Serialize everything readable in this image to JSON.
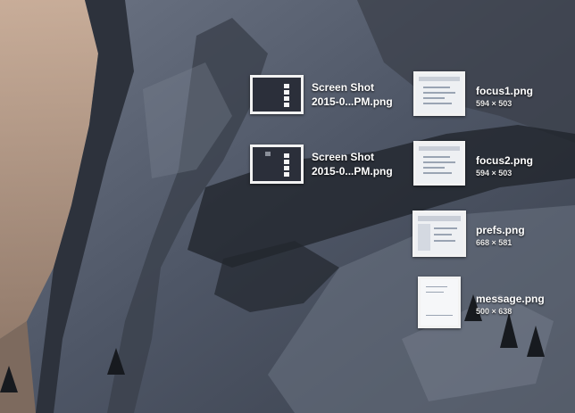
{
  "desktop": {
    "files": [
      {
        "id": "screenshot-1",
        "name_line1": "Screen Shot",
        "name_line2": "2015-0...PM.png",
        "icon": "screenshot-thumbnail-icon"
      },
      {
        "id": "screenshot-2",
        "name_line1": "Screen Shot",
        "name_line2": "2015-0...PM.png",
        "icon": "screenshot-thumbnail-icon"
      },
      {
        "id": "focus1",
        "name": "focus1.png",
        "dims": "594 × 503",
        "icon": "image-thumbnail-icon"
      },
      {
        "id": "focus2",
        "name": "focus2.png",
        "dims": "594 × 503",
        "icon": "image-thumbnail-icon"
      },
      {
        "id": "prefs",
        "name": "prefs.png",
        "dims": "668 × 581",
        "icon": "image-thumbnail-icon"
      },
      {
        "id": "message",
        "name": "message.png",
        "dims": "500 × 638",
        "icon": "image-thumbnail-icon"
      }
    ]
  },
  "colors": {
    "label_text": "#ffffff",
    "thumb_border": "#f2f2f2",
    "wallpaper_dark": "#2e333d",
    "wallpaper_rock": "#5b6474",
    "wallpaper_sunlit": "#c9a98f"
  }
}
